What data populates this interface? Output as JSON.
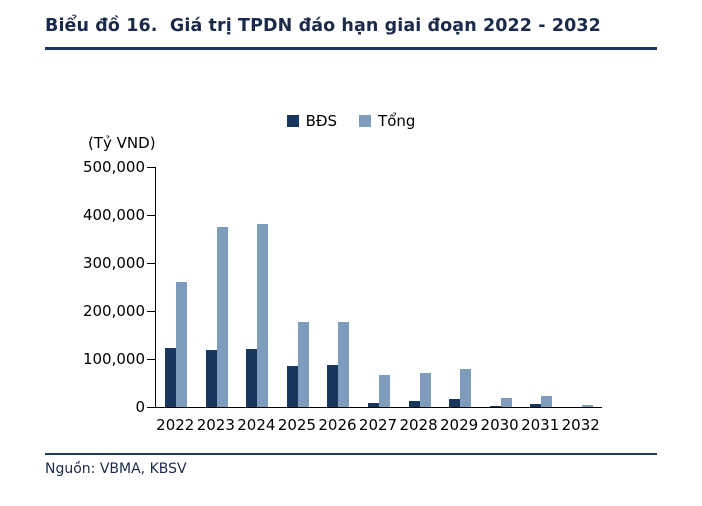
{
  "header": {
    "title": "Biểu đồ 16.  Giá trị TPDN đáo hạn giai đoạn 2022 - 2032"
  },
  "footer": {
    "source": "Nguồn: VBMA, KBSV"
  },
  "colors": {
    "accent_navy": "#1f3864",
    "bar_dark": "#17375d",
    "bar_light": "#7e9dbc"
  },
  "chart_data": {
    "type": "bar",
    "title": "Giá trị TPDN đáo hạn giai đoạn 2022 - 2032",
    "ylabel": "(Tỷ VND)",
    "xlabel": "",
    "ylim": [
      0,
      500000
    ],
    "yticks": [
      0,
      100000,
      200000,
      300000,
      400000,
      500000
    ],
    "ytick_labels": [
      "0",
      "100,000",
      "200,000",
      "300,000",
      "400,000",
      "500,000"
    ],
    "grid": false,
    "legend_position": "top",
    "categories": [
      "2022",
      "2023",
      "2024",
      "2025",
      "2026",
      "2027",
      "2028",
      "2029",
      "2030",
      "2031",
      "2032"
    ],
    "series": [
      {
        "name": "BĐS",
        "color": "#17375d",
        "values": [
          122000,
          119000,
          120000,
          85000,
          87000,
          8000,
          12000,
          17000,
          2000,
          6000,
          1000
        ]
      },
      {
        "name": "Tổng",
        "color": "#7e9dbc",
        "values": [
          260000,
          375000,
          382000,
          178000,
          177000,
          67000,
          71000,
          80000,
          18000,
          22000,
          4000
        ]
      }
    ]
  }
}
